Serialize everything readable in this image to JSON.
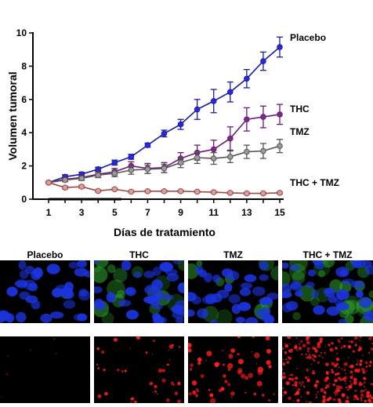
{
  "chart_data": {
    "type": "line",
    "xlabel": "Días de tratamiento",
    "ylabel": "Volumen tumoral",
    "xlim": [
      1,
      15
    ],
    "ylim": [
      0,
      10
    ],
    "x_ticks": [
      1,
      3,
      5,
      7,
      9,
      11,
      13,
      15
    ],
    "y_ticks": [
      0,
      2,
      4,
      6,
      8,
      10
    ],
    "grid": false,
    "x": [
      1,
      2,
      3,
      4,
      5,
      6,
      7,
      8,
      9,
      10,
      11,
      12,
      13,
      14,
      15
    ],
    "series": [
      {
        "name": "Placebo",
        "color": "#1a1aa8",
        "marker_fill": "#2a2ad8",
        "values": [
          1.0,
          1.35,
          1.5,
          1.8,
          2.2,
          2.55,
          3.25,
          3.95,
          4.5,
          5.4,
          5.9,
          6.45,
          7.25,
          8.3,
          9.15
        ],
        "errors": [
          0.05,
          0.12,
          0.12,
          0.12,
          0.15,
          0.15,
          0.12,
          0.2,
          0.3,
          0.6,
          0.7,
          0.6,
          0.55,
          0.55,
          0.6
        ]
      },
      {
        "name": "THC",
        "color": "#6a1a7a",
        "marker_fill": "#7a2a8a",
        "values": [
          1.0,
          1.2,
          1.3,
          1.5,
          1.65,
          2.0,
          1.85,
          1.9,
          2.45,
          2.8,
          3.0,
          3.65,
          4.8,
          4.95,
          5.1
        ],
        "errors": [
          0.05,
          0.12,
          0.15,
          0.2,
          0.2,
          0.25,
          0.3,
          0.3,
          0.35,
          0.45,
          0.55,
          0.7,
          0.7,
          0.65,
          0.6
        ]
      },
      {
        "name": "TMZ",
        "color": "#555555",
        "marker_fill": "#9a9a9a",
        "values": [
          1.0,
          1.15,
          1.25,
          1.45,
          1.55,
          1.75,
          1.8,
          1.85,
          2.2,
          2.5,
          2.45,
          2.55,
          2.85,
          2.9,
          3.2
        ],
        "errors": [
          0.05,
          0.1,
          0.12,
          0.15,
          0.2,
          0.25,
          0.25,
          0.25,
          0.3,
          0.35,
          0.35,
          0.35,
          0.4,
          0.45,
          0.4
        ]
      },
      {
        "name": "THC + TMZ",
        "color": "#a04848",
        "marker_fill": "#d8a0a0",
        "values": [
          1.0,
          0.7,
          0.75,
          0.5,
          0.6,
          0.45,
          0.48,
          0.48,
          0.48,
          0.45,
          0.42,
          0.38,
          0.35,
          0.35,
          0.38
        ],
        "errors": [
          0.05,
          0.08,
          0.08,
          0.06,
          0.06,
          0.05,
          0.05,
          0.05,
          0.05,
          0.05,
          0.05,
          0.05,
          0.05,
          0.05,
          0.05
        ]
      }
    ]
  },
  "panels": {
    "labels": [
      "Placebo",
      "THC",
      "TMZ",
      "THC + TMZ"
    ],
    "colors": {
      "nuclei": "#1c34e0",
      "green": "#2fa02f",
      "red": "#ff1e1e",
      "background": "#000000"
    }
  }
}
